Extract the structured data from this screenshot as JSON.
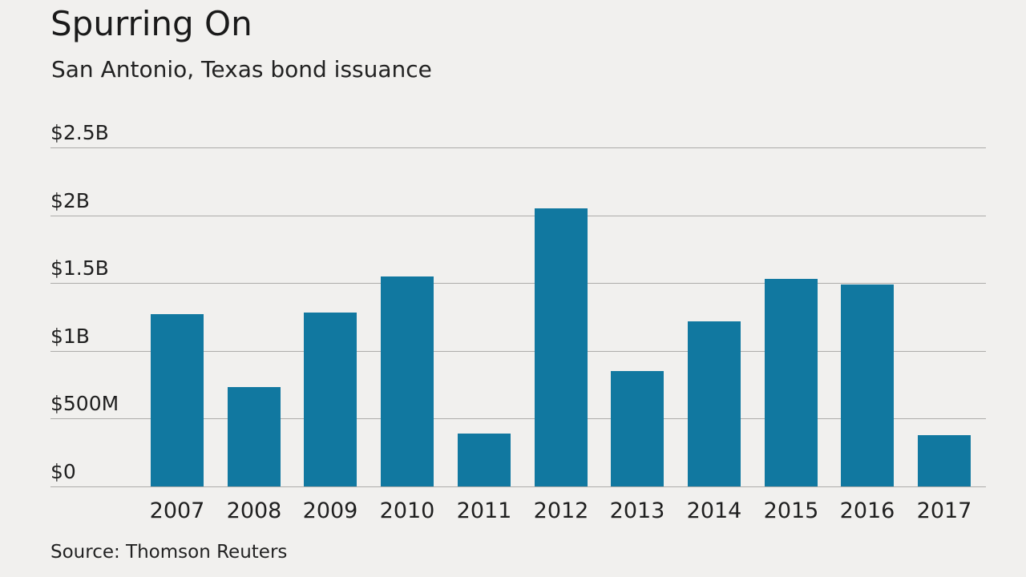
{
  "chart_data": {
    "type": "bar",
    "title": "Spurring On",
    "subtitle": "San Antonio, Texas bond issuance",
    "source": "Source: Thomson Reuters",
    "categories": [
      "2007",
      "2008",
      "2009",
      "2010",
      "2011",
      "2012",
      "2013",
      "2014",
      "2015",
      "2016",
      "2017"
    ],
    "values_billions": [
      1.27,
      0.73,
      1.28,
      1.55,
      0.39,
      2.05,
      0.85,
      1.22,
      1.53,
      1.49,
      0.38
    ],
    "y_ticks": [
      {
        "label": "$2.5B",
        "value": 2.5
      },
      {
        "label": "$2B",
        "value": 2.0
      },
      {
        "label": "$1.5B",
        "value": 1.5
      },
      {
        "label": "$1B",
        "value": 1.0
      },
      {
        "label": "$500M",
        "value": 0.5
      },
      {
        "label": "$0",
        "value": 0.0
      }
    ],
    "ylim": [
      0,
      2.5
    ],
    "xlabel": "",
    "ylabel": "",
    "bar_color": "#1178a0",
    "grid": true,
    "legend": "none"
  }
}
